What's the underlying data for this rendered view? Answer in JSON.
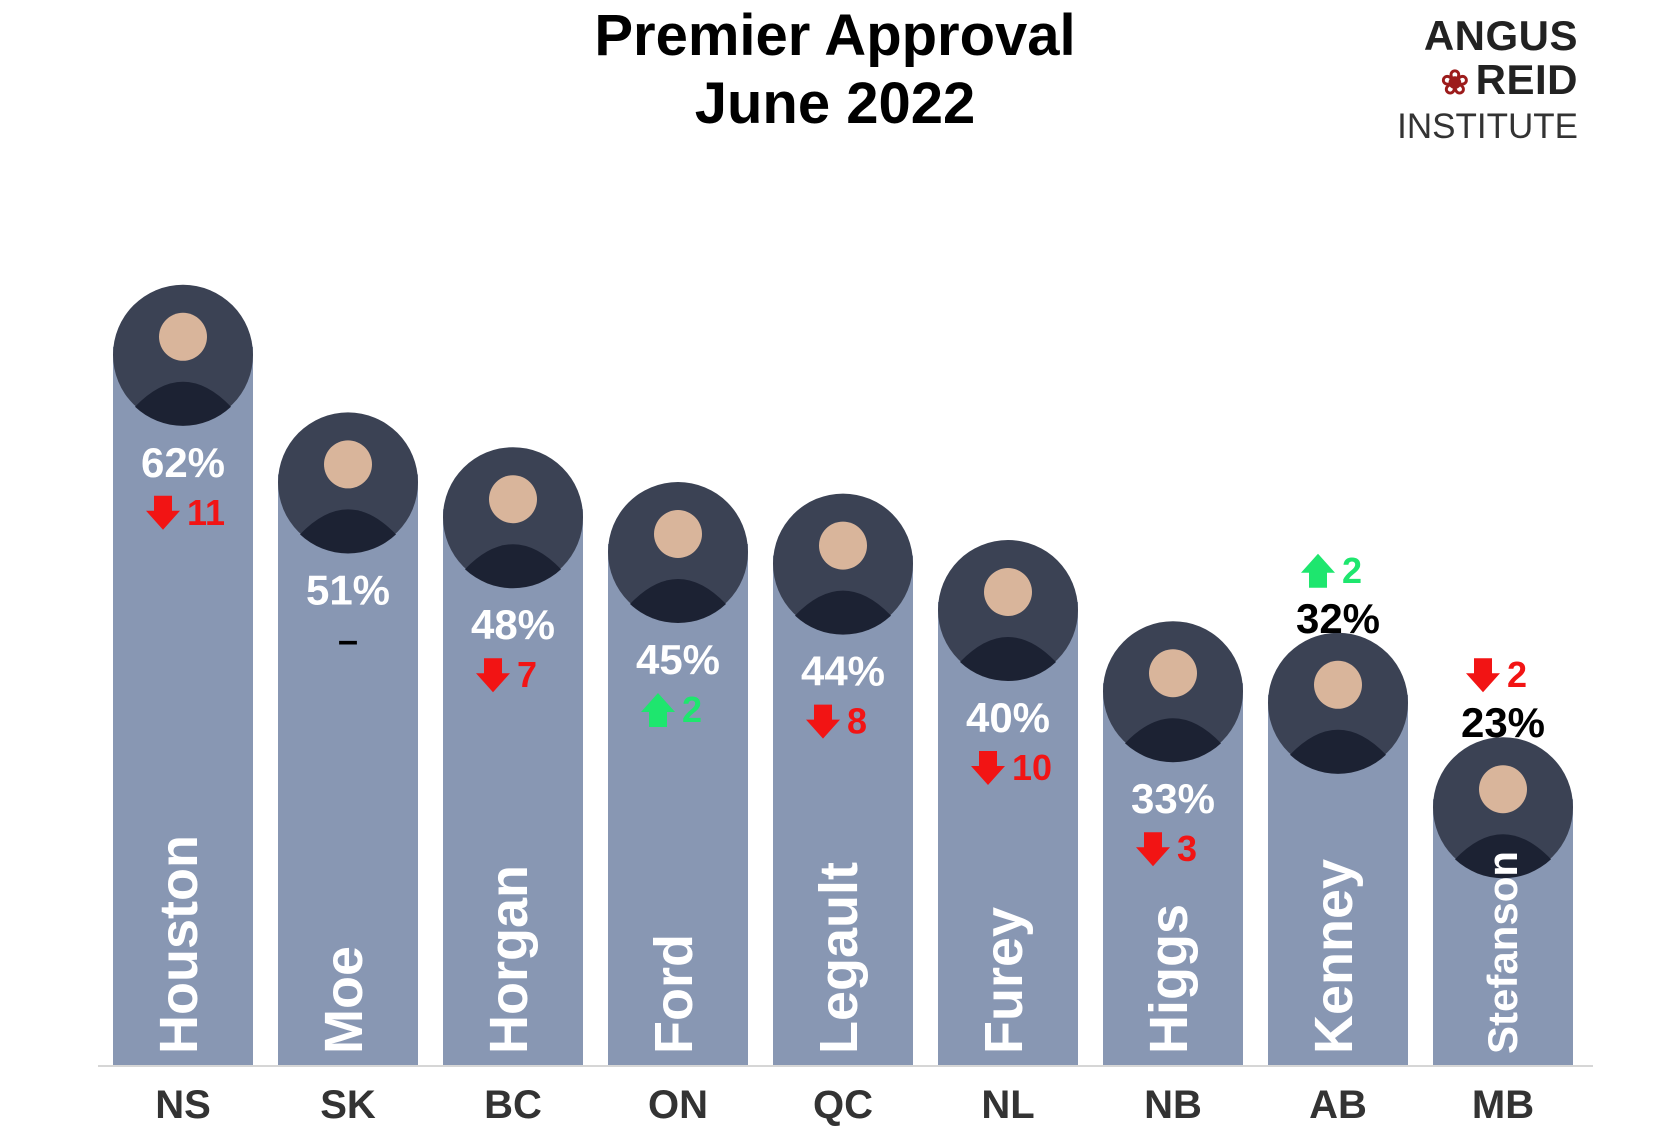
{
  "title_lines": [
    "Premier Approval",
    "June 2022"
  ],
  "logo": {
    "line1": "ANGUS",
    "line2": "REID",
    "line3": "INSTITUTE"
  },
  "colors": {
    "bar": "#8897b3",
    "up": "#1ee66e",
    "down": "#f21414",
    "same": "#000000",
    "baseline": "#d6d6d6"
  },
  "chart_data": {
    "type": "bar",
    "title": "Premier Approval June 2022",
    "categories": [
      "NS",
      "SK",
      "BC",
      "ON",
      "QC",
      "NL",
      "NB",
      "AB",
      "MB"
    ],
    "premiers": [
      "Houston",
      "Moe",
      "Horgan",
      "Ford",
      "Legault",
      "Furey",
      "Higgs",
      "Kenney",
      "Stefanson"
    ],
    "values": [
      62,
      51,
      48,
      45,
      44,
      40,
      33,
      32,
      23
    ],
    "value_labels": [
      "62%",
      "51%",
      "48%",
      "45%",
      "44%",
      "40%",
      "33%",
      "32%",
      "23%"
    ],
    "changes": [
      {
        "direction": "down",
        "label": "11"
      },
      {
        "direction": "none",
        "label": "–"
      },
      {
        "direction": "down",
        "label": "7"
      },
      {
        "direction": "up",
        "label": "2"
      },
      {
        "direction": "down",
        "label": "8"
      },
      {
        "direction": "down",
        "label": "10"
      },
      {
        "direction": "down",
        "label": "3"
      },
      {
        "direction": "up",
        "label": "2"
      },
      {
        "direction": "down",
        "label": "2"
      }
    ],
    "ylim": [
      0,
      70
    ],
    "grid": false,
    "legend": "none"
  }
}
